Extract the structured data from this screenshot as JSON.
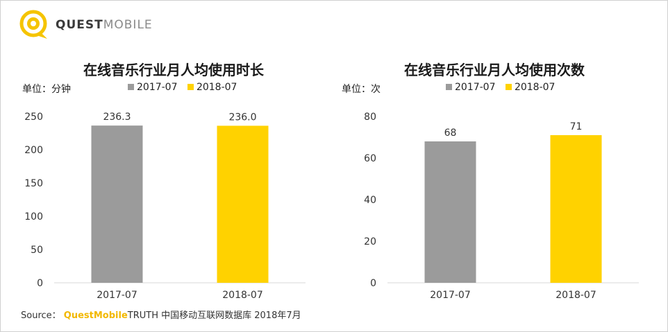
{
  "logo": {
    "text_bold": "QUEST",
    "text_light": "MOBILE"
  },
  "colors": {
    "gray": "#9b9b9b",
    "yellow": "#ffd200",
    "brand": "#f2b800"
  },
  "chart_data": [
    {
      "type": "bar",
      "title": "在线音乐行业月人均使用时长",
      "unit": "单位：分钟",
      "categories": [
        "2017-07",
        "2018-07"
      ],
      "series": [
        {
          "name": "",
          "values": [
            236.3,
            236.0
          ],
          "colors": [
            "#9b9b9b",
            "#ffd200"
          ]
        }
      ],
      "value_labels": [
        "236.3",
        "236.0"
      ],
      "legend": [
        "2017-07",
        "2018-07"
      ],
      "ylim": [
        0,
        250
      ],
      "yticks": [
        0,
        50,
        100,
        150,
        200,
        250
      ],
      "grid": false,
      "legend_position": "top"
    },
    {
      "type": "bar",
      "title": "在线音乐行业月人均使用次数",
      "unit": "单位：次",
      "categories": [
        "2017-07",
        "2018-07"
      ],
      "series": [
        {
          "name": "",
          "values": [
            68,
            71
          ],
          "colors": [
            "#9b9b9b",
            "#ffd200"
          ]
        }
      ],
      "value_labels": [
        "68",
        "71"
      ],
      "legend": [
        "2017-07",
        "2018-07"
      ],
      "ylim": [
        0,
        80
      ],
      "yticks": [
        0,
        20,
        40,
        60,
        80
      ],
      "grid": false,
      "legend_position": "top"
    }
  ],
  "source": {
    "prefix": "Source：",
    "brand": "QuestMobile",
    "rest": "TRUTH 中国移动互联网数据库 2018年7月"
  }
}
